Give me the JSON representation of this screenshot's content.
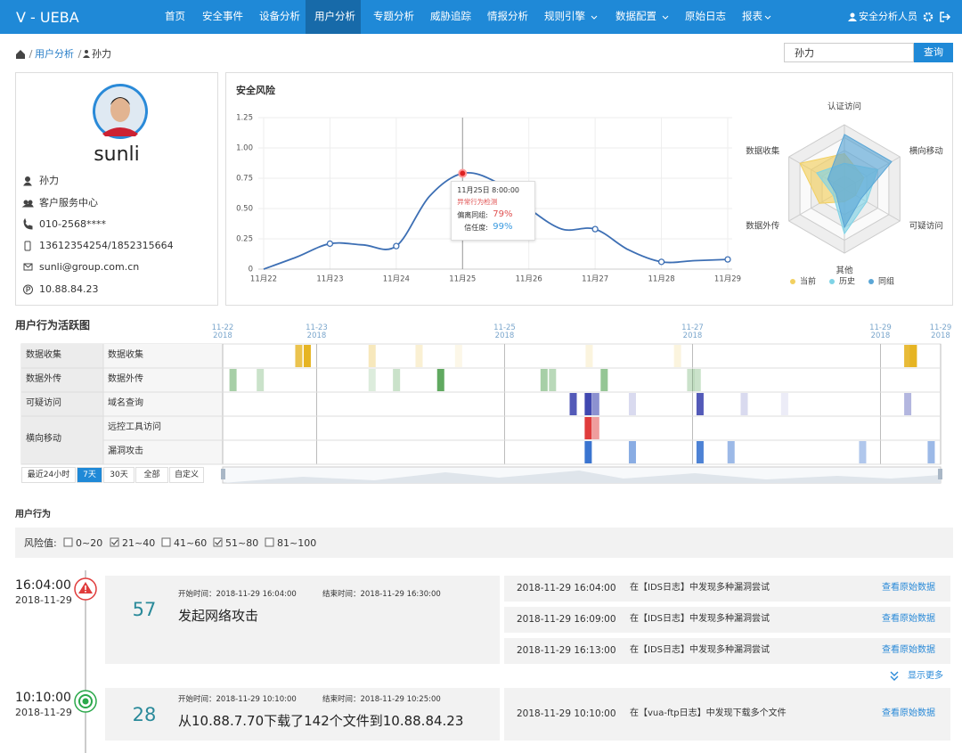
{
  "nav": {
    "logo": "V - UEBA",
    "items": [
      "首页",
      "安全事件",
      "设备分析",
      "用户分析",
      "专题分析",
      "威胁追踪",
      "情报分析",
      "规则引擎",
      "数据配置",
      "原始日志",
      "报表"
    ],
    "user": "安全分析人员"
  },
  "breadcrumb": [
    "用户分析",
    "孙力"
  ],
  "search": {
    "value": "孙力",
    "button": "查询"
  },
  "profile": {
    "username": "sunli",
    "fields": [
      "孙力",
      "客户服务中心",
      "010-2568****",
      "13612354254/1852315664",
      "sunli@group.com.cn",
      "10.88.84.23"
    ]
  },
  "risk_chart": {
    "type": "line",
    "title": "安全风险",
    "categories": [
      "11月22",
      null,
      "11月23",
      null,
      "11月24",
      null,
      "11月25",
      null,
      "11月26",
      null,
      "11月27",
      null,
      "11月28",
      null,
      "11月29"
    ],
    "values": [
      0,
      0.1,
      0.21,
      0.2,
      0.19,
      0.6,
      0.79,
      0.72,
      0.5,
      0.33,
      0.33,
      0.16,
      0.06,
      0.07,
      0.08
    ],
    "ylim": [
      0,
      1.25
    ],
    "yticks": [
      0,
      0.25,
      {
        "value": 0.5,
        "label": "0.50"
      },
      0.75,
      {
        "value": 1,
        "label": "1.00"
      },
      1.25
    ],
    "color": "#3d6fb4",
    "grid": true,
    "tooltip": {
      "time": "11月25日  8:00:00",
      "event": "异常行为检测",
      "deviation_label": "偏离同组:",
      "deviation": "79%",
      "trust_label": "信任度:",
      "trust": "99%"
    }
  },
  "radar_chart": {
    "type": "radar",
    "axes": [
      "认证访问",
      "横向移动",
      "可疑访问",
      "其他",
      "数据外传",
      "数据收集"
    ],
    "rlim": [
      0,
      100
    ],
    "series": [
      {
        "name": "当前",
        "color": "#f2d060",
        "values": [
          55,
          35,
          20,
          20,
          45,
          80
        ]
      },
      {
        "name": "历史",
        "color": "#7fd3e6",
        "values": [
          40,
          60,
          40,
          70,
          20,
          50
        ]
      },
      {
        "name": "同组",
        "color": "#5aa6d6",
        "values": [
          85,
          85,
          30,
          60,
          15,
          30
        ]
      }
    ]
  },
  "activity": {
    "type": "heatmap",
    "title": "用户行为活跃图",
    "xlim": [
      22,
      29.64
    ],
    "xticks": [
      {
        "value": 22,
        "label": "11-22\n2018"
      },
      {
        "value": 23,
        "label": "11-23\n2018"
      },
      {
        "value": 25,
        "label": "11-25\n2018"
      },
      {
        "value": 27,
        "label": "11-27\n2018"
      },
      {
        "value": 29,
        "label": "11-29\n2018"
      },
      {
        "value": 29.64,
        "label": "11-29\n2018"
      }
    ],
    "groups": [
      {
        "name": "数据收集",
        "rows": [
          {
            "name": "数据收集",
            "color": "#e6b422",
            "x": [
              22.81,
              22.9,
              23.59,
              24.09,
              24.51,
              25.9,
              26.84,
              29.29,
              29.35
            ],
            "values": [
              0.8,
              1,
              0.3,
              0.2,
              0.1,
              0.15,
              0.15,
              0.9,
              1
            ]
          }
        ]
      },
      {
        "name": "数据外传",
        "rows": [
          {
            "name": "数据外传",
            "color": "#4fa04f",
            "x": [
              22.11,
              22.4,
              23.59,
              23.85,
              24.32,
              25.42,
              25.51,
              26.06,
              26.98,
              27.05
            ],
            "values": [
              0.5,
              0.3,
              0.2,
              0.3,
              0.9,
              0.5,
              0.4,
              0.6,
              0.3,
              0.3
            ]
          }
        ]
      },
      {
        "name": "可疑访问",
        "rows": [
          {
            "name": "域名查询",
            "color": "#4048b0",
            "x": [
              25.73,
              25.89,
              25.97,
              26.36,
              27.08,
              27.55,
              27.98,
              29.29
            ],
            "values": [
              0.9,
              1,
              0.6,
              0.2,
              0.9,
              0.2,
              0.1,
              0.4
            ]
          }
        ]
      },
      {
        "name": "横向移动",
        "rows": [
          {
            "name": "远控工具访问",
            "color": "#e03c3c",
            "x": [
              25.89,
              25.97
            ],
            "values": [
              1,
              0.5
            ]
          },
          {
            "name": "漏洞攻击",
            "color": "#3a74d0",
            "x": [
              25.89,
              26.36,
              27.08,
              27.41,
              28.81,
              29.54
            ],
            "values": [
              1,
              0.6,
              0.9,
              0.5,
              0.4,
              0.5
            ]
          }
        ]
      }
    ],
    "ranges": [
      "最近24小时",
      "7天",
      "30天",
      "全部",
      "自定义"
    ]
  },
  "behavior": {
    "title": "用户行为",
    "filter_label": "风险值:",
    "filters": [
      {
        "label": "0~20",
        "checked": false
      },
      {
        "label": "21~40",
        "checked": true
      },
      {
        "label": "41~60",
        "checked": false
      },
      {
        "label": "51~80",
        "checked": true
      },
      {
        "label": "81~100",
        "checked": false
      }
    ],
    "events": [
      {
        "time": "16:04:00",
        "date": "2018-11-29",
        "color": "#e03c3c",
        "score": 57,
        "start": "开始时间：2018-11-29  16:04:00",
        "end": "结束时间：2018-11-29  16:30:00",
        "title": "发起网络攻击",
        "logs": [
          {
            "time": "2018-11-29  16:04:00",
            "text": "在【IDS日志】中发现多种漏洞尝试",
            "link": "查看原始数据"
          },
          {
            "time": "2018-11-29  16:09:00",
            "text": "在【IDS日志】中发现多种漏洞尝试",
            "link": "查看原始数据"
          },
          {
            "time": "2018-11-29  16:13:00",
            "text": "在【IDS日志】中发现多种漏洞尝试",
            "link": "查看原始数据"
          }
        ]
      },
      {
        "time": "10:10:00",
        "date": "2018-11-29",
        "color": "#2aa84a",
        "score": 28,
        "start": "开始时间：2018-11-29  10:10:00",
        "end": "结束时间：2018-11-29  10:25:00",
        "title": "从10.88.7.70下载了142个文件到10.88.84.23",
        "logs": [
          {
            "time": "2018-11-29  10:10:00",
            "text": "在【vua-ftp日志】中发现下载多个文件",
            "link": "查看原始数据"
          }
        ]
      }
    ],
    "more": "显示更多"
  }
}
